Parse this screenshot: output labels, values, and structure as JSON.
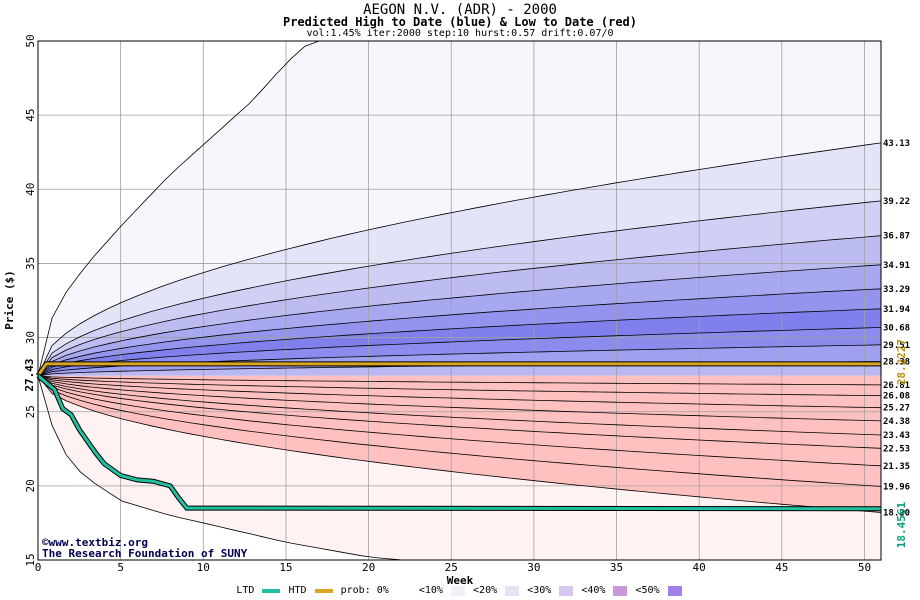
{
  "chart_data": {
    "type": "area",
    "title": "AEGON N.V. (ADR) - 2000",
    "subtitle": "Predicted High to Date (blue) &  Low to Date (red)",
    "params": "vol:1.45% iter:2000 step:10 hurst:0.57 drift:0.07/0",
    "xlabel": "Week",
    "ylabel": "Price ($)",
    "xlim": [
      0,
      51
    ],
    "ylim": [
      15,
      50
    ],
    "x_ticks": [
      0,
      5,
      10,
      15,
      20,
      25,
      30,
      35,
      40,
      45,
      50
    ],
    "y_ticks": [
      15,
      20,
      25,
      30,
      35,
      40,
      45,
      50
    ],
    "grid": true,
    "start_price": 27.43,
    "start_price_label": "27.43",
    "high_series_end_values": [
      43.13,
      39.22,
      36.87,
      34.91,
      33.29,
      31.94,
      30.68,
      29.51,
      28.38
    ],
    "high_series_labels": [
      "43.13",
      "39.22",
      "36.87",
      "34.91",
      "33.29",
      "31.94",
      "30.68",
      "29.51",
      "28.38"
    ],
    "low_series_end_values": [
      26.81,
      26.08,
      25.27,
      24.38,
      23.43,
      22.53,
      21.35,
      19.96,
      18.2
    ],
    "low_series_labels": [
      "26.81",
      "26.08",
      "25.27",
      "24.38",
      "23.43",
      "22.53",
      "21.35",
      "19.96",
      "18.20"
    ],
    "envelope_high": {
      "x": [
        0,
        1,
        3,
        5,
        8,
        10,
        13,
        15,
        16.5
      ],
      "values": [
        27.43,
        32,
        35,
        37.5,
        41,
        43,
        46,
        48.5,
        50
      ]
    },
    "envelope_low": {
      "x": [
        0,
        1,
        2,
        3,
        5,
        8,
        10,
        15,
        20,
        22
      ],
      "values": [
        27.43,
        23.5,
        21.5,
        20.5,
        19,
        18,
        17.5,
        16.2,
        15.2,
        15
      ]
    },
    "htd": {
      "name": "HTD",
      "color": "#daa520",
      "value": 28.2227,
      "label": "28.2227"
    },
    "ltd": {
      "name": "LTD",
      "color": "#20c0a0",
      "value": 18.4561,
      "label": "18.4561",
      "x": [
        0,
        1,
        1.5,
        2,
        2.5,
        3,
        3.5,
        4,
        5,
        6,
        7,
        8,
        8.5,
        9,
        51
      ],
      "values": [
        27.43,
        26.5,
        25.2,
        24.8,
        23.8,
        23.0,
        22.2,
        21.5,
        20.7,
        20.4,
        20.3,
        20.0,
        19.2,
        18.5,
        18.4561
      ]
    },
    "bands": {
      "blue": [
        "#f6f6fc",
        "#e4e4f8",
        "#d0d0f4",
        "#bcbcf0",
        "#a8a8f0",
        "#9494ee",
        "#8080ec",
        "#8c8cee",
        "#a0a0f0",
        "#b8b8f2"
      ],
      "red": [
        "#fff2f2",
        "#ffe4e4",
        "#ffd8d8",
        "#ffcaca",
        "#ffbcbc",
        "#ffaaaa",
        "#ff9a9a",
        "#ff8c8c",
        "#ffa0a0",
        "#ffc0c0"
      ]
    },
    "watermark_line1": "©www.textbiz.org",
    "watermark_line2": "The Research Foundation of SUNY",
    "legend": {
      "ltd": "LTD",
      "htd": "HTD",
      "prob": "prob:",
      "items": [
        "0%",
        "<10%",
        "<20%",
        "<30%",
        "<40%",
        "<50%"
      ],
      "colors": [
        "#ffffff",
        "#f4f4f8",
        "#e8e8f4",
        "#d0c8f0",
        "#c090d8",
        "#a080e8"
      ]
    }
  }
}
